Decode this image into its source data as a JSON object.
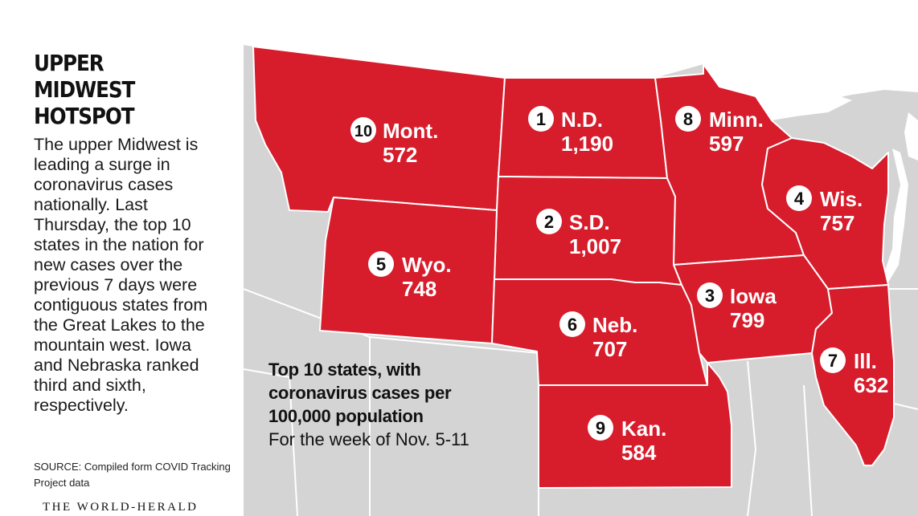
{
  "header": {
    "title_lines": [
      "UPPER",
      "MIDWEST",
      "HOTSPOT"
    ]
  },
  "article": {
    "body": "The upper Midwest is leading a surge in coronavirus cases nationally. Last Thursday, the top 10 states in the nation for new cases over the previous 7 days were contiguous states from the Great Lakes to the mountain west. Iowa and Nebraska ranked third and sixth, respectively.",
    "source": "SOURCE: Compiled form COVID Tracking Project data",
    "publisher": "THE WORLD-HERALD"
  },
  "legend": {
    "title_lines": [
      "Top 10 states, with",
      "coronavirus cases per",
      "100,000 population"
    ],
    "subtitle": "For the week of Nov. 5-11"
  },
  "colors": {
    "highlight_state": "#d71c2b",
    "other_state": "#d4d4d4",
    "border": "#ffffff",
    "water": "#ffffff",
    "marker_fill": "#ffffff",
    "marker_text": "#111111",
    "label_text": "#ffffff"
  },
  "states": [
    {
      "rank": "1",
      "abbr": "N.D.",
      "value": "1,190"
    },
    {
      "rank": "2",
      "abbr": "S.D.",
      "value": "1,007"
    },
    {
      "rank": "3",
      "abbr": "Iowa",
      "value": "799"
    },
    {
      "rank": "4",
      "abbr": "Wis.",
      "value": "757"
    },
    {
      "rank": "5",
      "abbr": "Wyo.",
      "value": "748"
    },
    {
      "rank": "6",
      "abbr": "Neb.",
      "value": "707"
    },
    {
      "rank": "7",
      "abbr": "Ill.",
      "value": "632"
    },
    {
      "rank": "8",
      "abbr": "Minn.",
      "value": "597"
    },
    {
      "rank": "9",
      "abbr": "Kan.",
      "value": "584"
    },
    {
      "rank": "10",
      "abbr": "Mont.",
      "value": "572"
    }
  ]
}
